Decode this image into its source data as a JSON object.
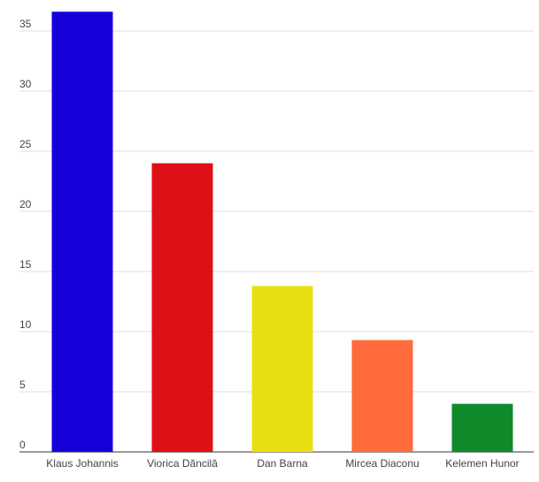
{
  "chart_data": {
    "type": "bar",
    "categories": [
      "Klaus Johannis",
      "Viorica Dăncilă",
      "Dan Barna",
      "Mircea Diaconu",
      "Kelemen Hunor"
    ],
    "values": [
      36.6,
      24.0,
      13.8,
      9.3,
      4.0
    ],
    "colors": [
      "#1500dc",
      "#dd1015",
      "#e9df10",
      "#ff6b3b",
      "#108a2a"
    ],
    "ylim": [
      0,
      37
    ],
    "yticks": [
      0,
      5,
      10,
      15,
      20,
      25,
      30,
      35
    ],
    "grid": true
  }
}
